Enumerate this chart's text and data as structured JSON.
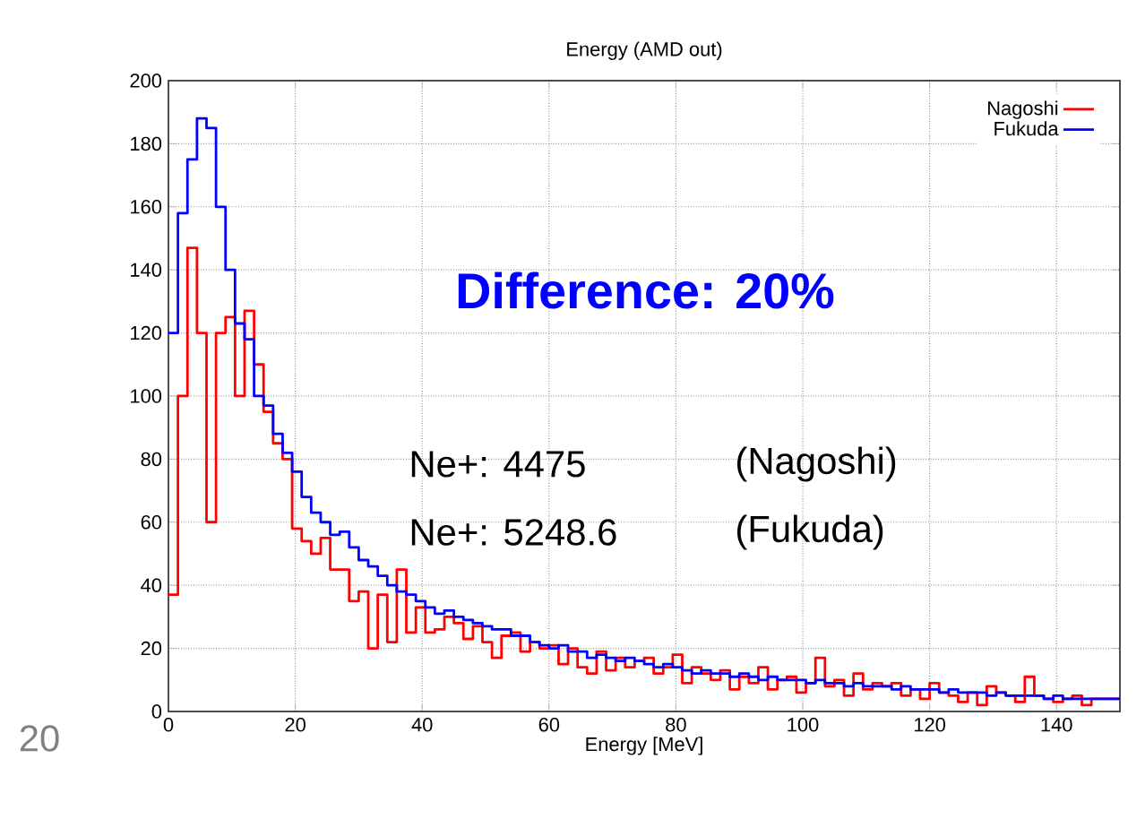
{
  "chart_data": {
    "type": "histogram",
    "title": "Energy (AMD out)",
    "xlabel": "Energy [MeV]",
    "bins": [
      0,
      1.5,
      3,
      4.5,
      6,
      7.5,
      9,
      10.5,
      12,
      13.5,
      15,
      16.5,
      18,
      19.5,
      21,
      22.5,
      24,
      25.5,
      27,
      28.5,
      30,
      31.5,
      33,
      34.5,
      36,
      37.5,
      39,
      40.5,
      42,
      43.5,
      45,
      46.5,
      48,
      49.5,
      51,
      52.5,
      54,
      55.5,
      57,
      58.5,
      60,
      61.5,
      63,
      64.5,
      66,
      67.5,
      69,
      70.5,
      72,
      73.5,
      75,
      76.5,
      78,
      79.5,
      81,
      82.5,
      84,
      85.5,
      87,
      88.5,
      90,
      91.5,
      93,
      94.5,
      96,
      97.5,
      99,
      100.5,
      102,
      103.5,
      105,
      106.5,
      108,
      109.5,
      111,
      112.5,
      114,
      115.5,
      117,
      118.5,
      120,
      121.5,
      123,
      124.5,
      126,
      127.5,
      129,
      130.5,
      132,
      133.5,
      135,
      136.5,
      138,
      139.5,
      141,
      142.5,
      144,
      145.5,
      147,
      148.5,
      150
    ],
    "series": [
      {
        "name": "Nagoshi",
        "color": "#ff0000",
        "values": [
          37,
          100,
          147,
          120,
          60,
          120,
          125,
          100,
          127,
          110,
          95,
          85,
          80,
          58,
          54,
          50,
          55,
          45,
          45,
          35,
          38,
          20,
          37,
          22,
          45,
          25,
          33,
          25,
          26,
          30,
          28,
          23,
          27,
          22,
          17,
          24,
          25,
          19,
          22,
          20,
          21,
          15,
          20,
          14,
          12,
          19,
          13,
          17,
          14,
          16,
          17,
          12,
          14,
          18,
          9,
          14,
          12,
          10,
          13,
          7,
          11,
          9,
          14,
          7,
          10,
          11,
          6,
          9,
          17,
          8,
          10,
          5,
          12,
          7,
          9,
          8,
          9,
          5,
          7,
          4,
          9,
          6,
          5,
          3,
          6,
          2,
          8,
          6,
          5,
          3,
          11,
          5,
          4,
          3,
          4,
          5,
          2,
          4,
          4,
          4
        ]
      },
      {
        "name": "Fukuda",
        "color": "#0000ff",
        "values": [
          120,
          158,
          175,
          188,
          185,
          160,
          140,
          123,
          118,
          100,
          97,
          88,
          82,
          76,
          68,
          63,
          60,
          56,
          57,
          52,
          48,
          46,
          43,
          40,
          38,
          37,
          35,
          33,
          31,
          32,
          30,
          29,
          28,
          27,
          26,
          26,
          24,
          24,
          22,
          21,
          20,
          21,
          19,
          19,
          17,
          18,
          17,
          16,
          17,
          16,
          15,
          14,
          15,
          14,
          13,
          12,
          13,
          12,
          12,
          11,
          12,
          11,
          10,
          11,
          10,
          10,
          10,
          9,
          10,
          9,
          9,
          8,
          9,
          8,
          8,
          8,
          7,
          8,
          7,
          7,
          7,
          6,
          7,
          6,
          6,
          6,
          5,
          6,
          5,
          5,
          5,
          5,
          4,
          5,
          4,
          4,
          4,
          4,
          4,
          4
        ]
      }
    ],
    "xlim": [
      0,
      150
    ],
    "ylim": [
      0,
      200
    ],
    "xticks": [
      0,
      20,
      40,
      60,
      80,
      100,
      120,
      140
    ],
    "yticks": [
      0,
      20,
      40,
      60,
      80,
      100,
      120,
      140,
      160,
      180,
      200
    ],
    "grid": true,
    "legend": "top right",
    "annotations": [
      "Difference: 20%",
      "Ne+:  4475",
      "(Nagoshi)",
      "Ne+:  5248.6",
      "(Fukuda)",
      "20"
    ]
  }
}
